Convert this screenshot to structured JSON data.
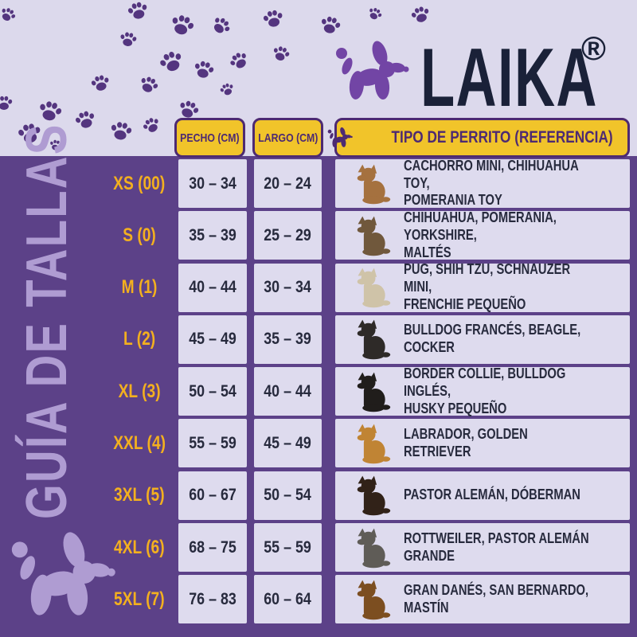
{
  "brand": {
    "name": "LAIKA",
    "registered_mark": "®",
    "logo_icon": "balloon-dog-icon"
  },
  "sidebar": {
    "title": "GUÍA DE TALLAS",
    "decoration_icon": "balloon-dog-icon"
  },
  "header": {
    "decoration_icon": "paw-print-icon"
  },
  "table": {
    "column_headers": {
      "chest": "PECHO (CM)",
      "length": "LARGO (CM)",
      "breed_reference": "TIPO DE PERRITO (REFERENCIA)",
      "breed_header_icon": "balloon-dog-icon"
    },
    "rows": [
      {
        "size": "XS (00)",
        "chest_cm": "30 – 34",
        "length_cm": "20 – 24",
        "breeds": "CACHORRO MINI, CHIHUAHUA TOY,\nPOMERANIA TOY",
        "dog": "chihuahua",
        "dog_color": "#A5713F"
      },
      {
        "size": "S (0)",
        "chest_cm": "35 – 39",
        "length_cm": "25 – 29",
        "breeds": "CHIHUAHUA, POMERANIA, YORKSHIRE,\nMALTÉS",
        "dog": "yorkshire-terrier",
        "dog_color": "#70583C"
      },
      {
        "size": "M (1)",
        "chest_cm": "40 – 44",
        "length_cm": "30 – 34",
        "breeds": "PUG, SHIH TZU, SCHNAUZER MINI,\nFRENCHIE PEQUEÑO",
        "dog": "shih-tzu",
        "dog_color": "#CFC3A8"
      },
      {
        "size": "L (2)",
        "chest_cm": "45 – 49",
        "length_cm": "35 – 39",
        "breeds": "BULLDOG FRANCÉS, BEAGLE,\nCOCKER",
        "dog": "french-bulldog",
        "dog_color": "#2E2A28"
      },
      {
        "size": "XL (3)",
        "chest_cm": "50 – 54",
        "length_cm": "40 – 44",
        "breeds": "BORDER COLLIE, BULLDOG INGLÉS,\nHUSKY PEQUEÑO",
        "dog": "border-collie",
        "dog_color": "#201D1B"
      },
      {
        "size": "XXL (4)",
        "chest_cm": "55 – 59",
        "length_cm": "45 – 49",
        "breeds": "LABRADOR, GOLDEN RETRIEVER",
        "dog": "golden-retriever",
        "dog_color": "#C08434"
      },
      {
        "size": "3XL (5)",
        "chest_cm": "60 – 67",
        "length_cm": "50 – 54",
        "breeds": "PASTOR ALEMÁN, DÓBERMAN",
        "dog": "doberman",
        "dog_color": "#312218"
      },
      {
        "size": "4XL (6)",
        "chest_cm": "68 – 75",
        "length_cm": "55 – 59",
        "breeds": "ROTTWEILER, PASTOR ALEMÁN GRANDE",
        "dog": "rottweiler",
        "dog_color": "#5F5C57"
      },
      {
        "size": "5XL (7)",
        "chest_cm": "76 – 83",
        "length_cm": "60 – 64",
        "breeds": "GRAN DANÉS, SAN BERNARDO, MASTÍN",
        "dog": "mastiff",
        "dog_color": "#7C4E20"
      }
    ]
  },
  "colors": {
    "background_purple": "#5C4188",
    "header_lavender": "#DCD9EC",
    "cell_lavender": "#DEDBEE",
    "accent_yellow": "#F1C42A",
    "size_label_yellow": "#F3B01F",
    "chip_text_purple": "#4D2A72",
    "brand_navy": "#1A2138",
    "paw_purple": "#54357F",
    "logo_purple": "#7245A5",
    "light_purple": "#AF9CD2",
    "cell_text": "#272A3D"
  }
}
